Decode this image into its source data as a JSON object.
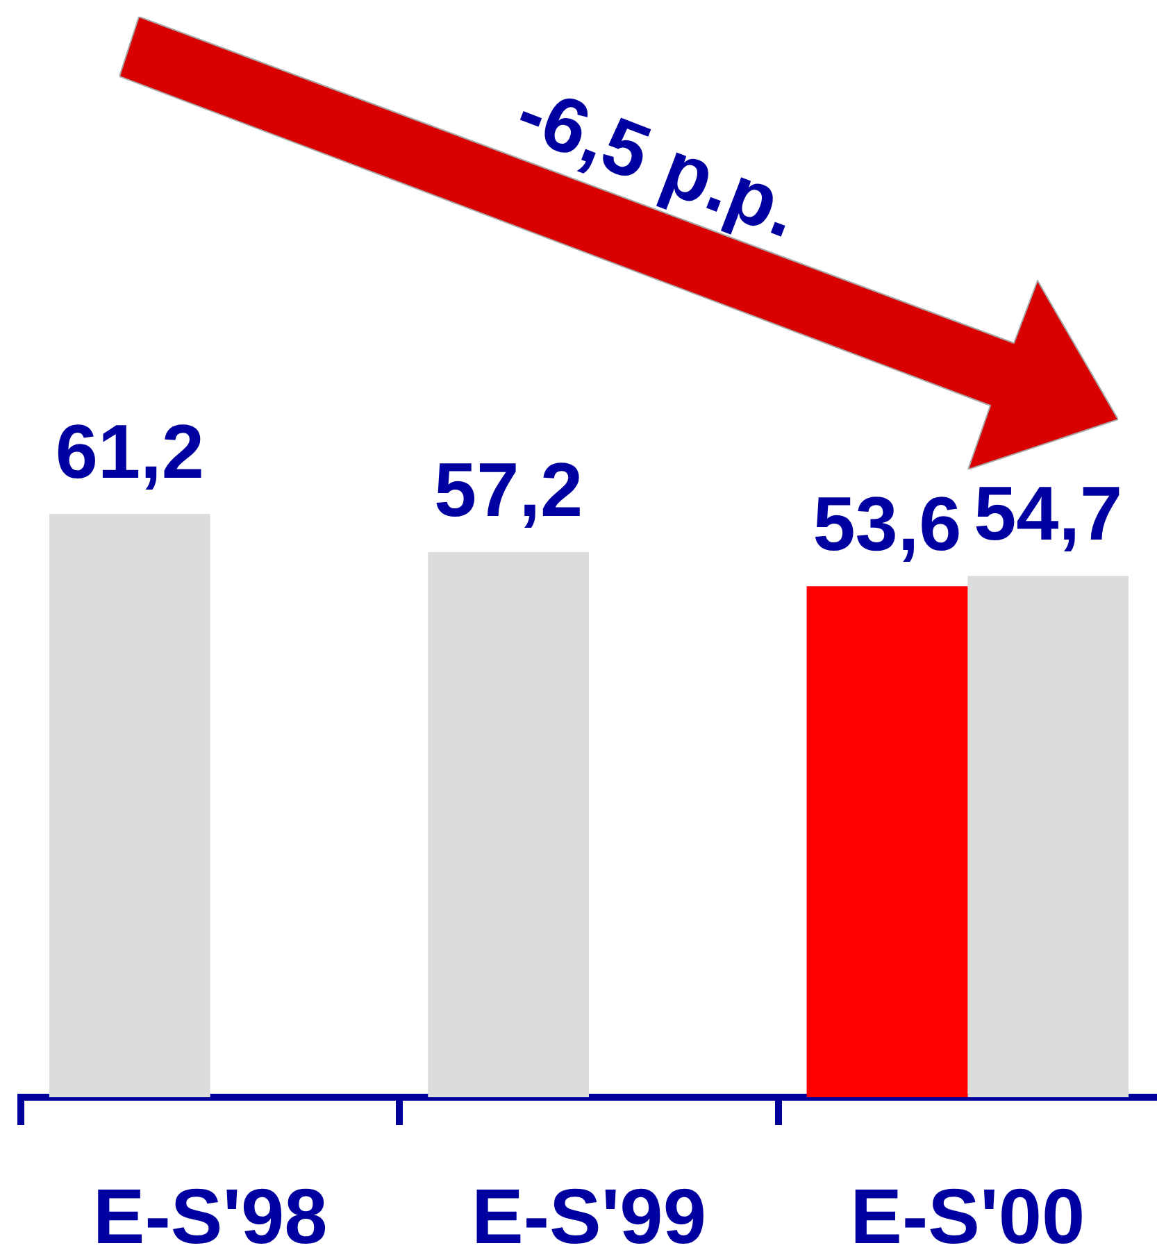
{
  "chart_data": {
    "type": "bar",
    "categories": [
      "E-S'98",
      "E-S'99",
      "E-S'00"
    ],
    "series": [
      {
        "colors": [
          "#dcdcdc",
          "#dcdcdc",
          "#ff0000"
        ],
        "values": [
          61.2,
          57.2,
          53.6
        ],
        "value_labels": [
          "61,2",
          "57,2",
          "53,6"
        ]
      },
      {
        "color": "#dcdcdc",
        "values": [
          null,
          null,
          54.7
        ],
        "value_labels": [
          null,
          null,
          "54,7"
        ]
      }
    ],
    "tick_labels": "x",
    "annotations": [
      "-6,5 p.p."
    ]
  }
}
